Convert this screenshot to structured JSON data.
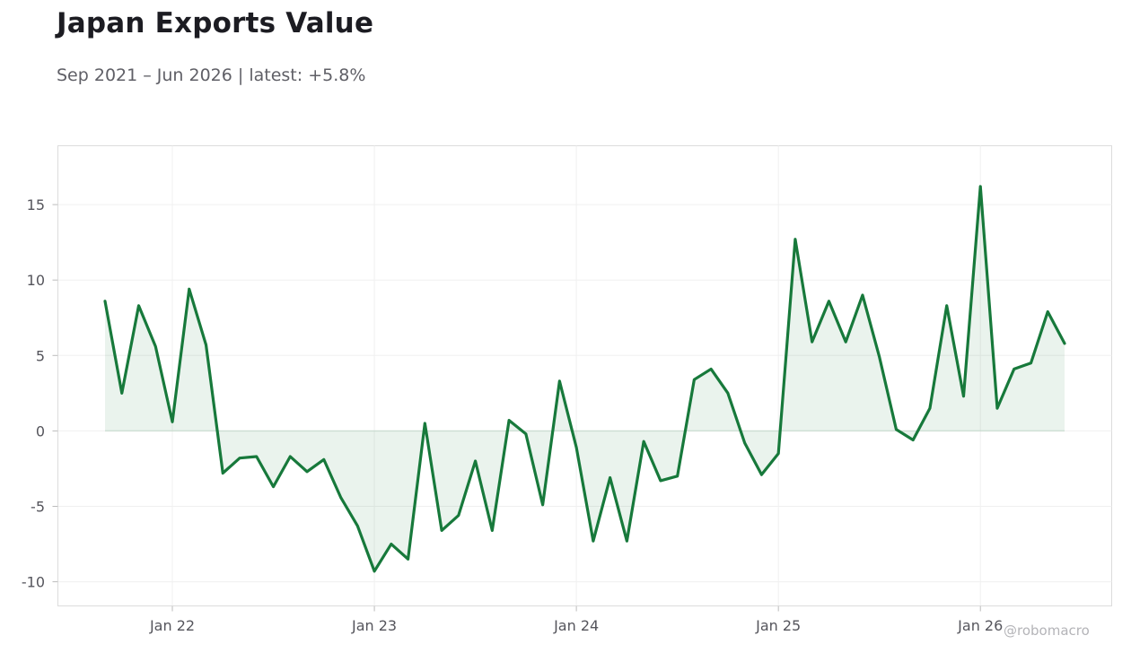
{
  "title": "Japan Exports Value",
  "subtitle": "Sep 2021 – Jun 2026 | latest: +5.8%",
  "watermark": "@robomacro",
  "chart_data": {
    "type": "area",
    "x_start": "2021-09",
    "x_end": "2026-06",
    "x_ticks": [
      {
        "label": "Jan 22",
        "date": "2022-01"
      },
      {
        "label": "Jan 23",
        "date": "2023-01"
      },
      {
        "label": "Jan 24",
        "date": "2024-01"
      },
      {
        "label": "Jan 25",
        "date": "2025-01"
      },
      {
        "label": "Jan 26",
        "date": "2026-01"
      }
    ],
    "y_ticks": [
      15,
      10,
      5,
      0,
      -5,
      -10
    ],
    "y_tick_labels": [
      "15",
      "10",
      "5",
      "0",
      "-5",
      "-10"
    ],
    "ylim": [
      -11.6,
      18.9
    ],
    "grid": true,
    "colors": {
      "line": "#17793b",
      "fill": "#17793b"
    },
    "series": [
      {
        "values": [
          8.6,
          2.5,
          8.3,
          5.6,
          0.6,
          9.4,
          5.7,
          -2.8,
          -1.8,
          -1.7,
          -3.7,
          -1.7,
          -2.7,
          -1.9,
          -4.4,
          -6.3,
          -9.3,
          -7.5,
          -8.5,
          0.5,
          -6.6,
          -5.6,
          -2.0,
          -6.6,
          0.7,
          -0.2,
          -4.9,
          3.3,
          -1.1,
          -7.3,
          -3.1,
          -7.3,
          -0.7,
          -3.3,
          -3.0,
          3.4,
          4.1,
          2.5,
          -0.8,
          -2.9,
          -1.5,
          12.7,
          5.9,
          8.6,
          5.9,
          9.0,
          4.9,
          0.1,
          -0.6,
          1.5,
          8.3,
          2.3,
          16.2,
          1.5,
          4.1,
          4.5,
          7.9,
          5.8
        ]
      }
    ]
  }
}
